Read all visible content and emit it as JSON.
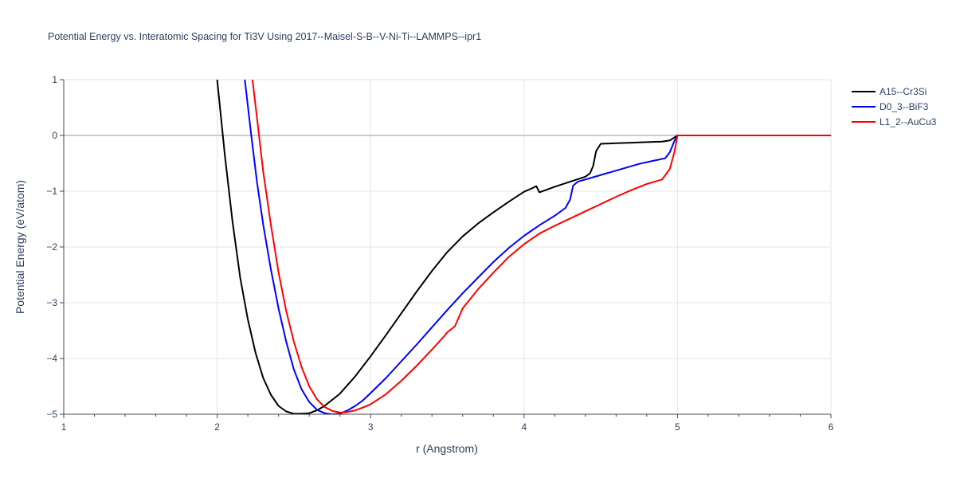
{
  "chart_data": {
    "type": "line",
    "title": "Potential Energy vs. Interatomic Spacing for Ti3V Using 2017--Maisel-S-B--V-Ni-Ti--LAMMPS--ipr1",
    "xlabel": "r (Angstrom)",
    "ylabel": "Potential Energy (eV/atom)",
    "xlim": [
      1,
      6
    ],
    "ylim": [
      -5,
      1
    ],
    "xticks": [
      1,
      2,
      3,
      4,
      5,
      6
    ],
    "xtick_labels": [
      "1",
      "2",
      "3",
      "4",
      "5",
      "6"
    ],
    "yticks": [
      1,
      0,
      -1,
      -2,
      -3,
      -4,
      -5
    ],
    "ytick_labels": [
      "1",
      "0",
      "−1",
      "−2",
      "−3",
      "−4",
      "−5"
    ],
    "grid": true,
    "legend_position": "top-right",
    "series": [
      {
        "name": "A15--Cr3Si",
        "color": "#000000",
        "x": [
          2.0,
          2.05,
          2.1,
          2.15,
          2.2,
          2.25,
          2.3,
          2.35,
          2.4,
          2.45,
          2.5,
          2.55,
          2.6,
          2.65,
          2.7,
          2.8,
          2.9,
          3.0,
          3.1,
          3.2,
          3.3,
          3.4,
          3.5,
          3.6,
          3.7,
          3.8,
          3.9,
          4.0,
          4.05,
          4.08,
          4.1,
          4.2,
          4.3,
          4.4,
          4.43,
          4.45,
          4.47,
          4.5,
          4.6,
          4.7,
          4.8,
          4.9,
          4.95,
          5.0,
          5.5,
          6.0
        ],
        "y": [
          1.0,
          -0.35,
          -1.55,
          -2.55,
          -3.3,
          -3.9,
          -4.35,
          -4.65,
          -4.85,
          -4.95,
          -4.99,
          -4.99,
          -4.98,
          -4.93,
          -4.85,
          -4.63,
          -4.32,
          -3.96,
          -3.58,
          -3.19,
          -2.8,
          -2.43,
          -2.09,
          -1.81,
          -1.58,
          -1.38,
          -1.19,
          -1.01,
          -0.95,
          -0.91,
          -1.02,
          -0.92,
          -0.83,
          -0.74,
          -0.68,
          -0.55,
          -0.28,
          -0.15,
          -0.14,
          -0.13,
          -0.12,
          -0.11,
          -0.09,
          0.0,
          0.0,
          0.0
        ]
      },
      {
        "name": "D0_3--BiF3",
        "color": "#0000ff",
        "x": [
          2.18,
          2.22,
          2.26,
          2.3,
          2.35,
          2.4,
          2.45,
          2.5,
          2.55,
          2.6,
          2.65,
          2.7,
          2.75,
          2.8,
          2.85,
          2.9,
          2.95,
          3.0,
          3.1,
          3.2,
          3.3,
          3.4,
          3.5,
          3.6,
          3.7,
          3.8,
          3.9,
          4.0,
          4.1,
          4.2,
          4.27,
          4.3,
          4.32,
          4.35,
          4.45,
          4.55,
          4.65,
          4.75,
          4.85,
          4.92,
          4.95,
          4.98,
          5.0,
          5.5,
          6.0
        ],
        "y": [
          1.0,
          0.05,
          -0.85,
          -1.6,
          -2.4,
          -3.1,
          -3.7,
          -4.2,
          -4.55,
          -4.78,
          -4.92,
          -4.98,
          -5.0,
          -4.99,
          -4.93,
          -4.85,
          -4.75,
          -4.62,
          -4.35,
          -4.05,
          -3.75,
          -3.44,
          -3.13,
          -2.83,
          -2.55,
          -2.27,
          -2.02,
          -1.8,
          -1.61,
          -1.44,
          -1.3,
          -1.15,
          -0.9,
          -0.83,
          -0.75,
          -0.67,
          -0.59,
          -0.51,
          -0.45,
          -0.41,
          -0.3,
          -0.1,
          0.0,
          0.0,
          0.0
        ]
      },
      {
        "name": "L1_2--AuCu3",
        "color": "#ff0000",
        "x": [
          2.23,
          2.26,
          2.3,
          2.35,
          2.4,
          2.45,
          2.5,
          2.55,
          2.6,
          2.65,
          2.7,
          2.75,
          2.8,
          2.85,
          2.9,
          2.95,
          3.0,
          3.1,
          3.2,
          3.3,
          3.4,
          3.48,
          3.5,
          3.55,
          3.6,
          3.7,
          3.8,
          3.9,
          4.0,
          4.1,
          4.2,
          4.3,
          4.4,
          4.5,
          4.6,
          4.7,
          4.8,
          4.9,
          4.95,
          4.98,
          5.0,
          5.5,
          6.0
        ],
        "y": [
          1.0,
          0.3,
          -0.65,
          -1.6,
          -2.45,
          -3.15,
          -3.7,
          -4.15,
          -4.5,
          -4.73,
          -4.87,
          -4.94,
          -4.97,
          -4.96,
          -4.93,
          -4.88,
          -4.82,
          -4.64,
          -4.4,
          -4.13,
          -3.84,
          -3.6,
          -3.53,
          -3.42,
          -3.1,
          -2.76,
          -2.46,
          -2.18,
          -1.95,
          -1.76,
          -1.62,
          -1.49,
          -1.36,
          -1.23,
          -1.1,
          -0.98,
          -0.87,
          -0.79,
          -0.6,
          -0.3,
          0.0,
          0.0,
          0.0
        ]
      }
    ]
  }
}
